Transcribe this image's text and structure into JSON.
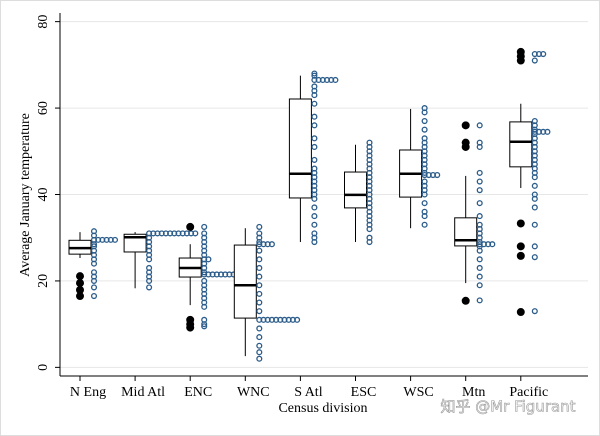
{
  "chart_data": {
    "type": "box",
    "y_label": "Average January temperature",
    "x_label": "Census division",
    "watermark": "知乎 @Mr Figurant",
    "categories": [
      "N Eng",
      "Mid Atl",
      "ENC",
      "WNC",
      "S Atl",
      "ESC",
      "WSC",
      "Mtn",
      "Pacific"
    ],
    "ylim": [
      -2,
      82
    ],
    "yticks": [
      0,
      20,
      40,
      60,
      80
    ],
    "grid": true,
    "box_color": "#000000",
    "point_color": "#2b5c8a",
    "boxes": [
      {
        "whisker_low": 25.3,
        "q1": 26.2,
        "median": 27.6,
        "q3": 29.4,
        "whisker_high": 31.3,
        "outliers": [
          21.1,
          19.5,
          17.9,
          16.5
        ]
      },
      {
        "whisker_low": 18.3,
        "q1": 26.7,
        "median": 30.1,
        "q3": 30.8,
        "whisker_high": 31.3,
        "outliers": []
      },
      {
        "whisker_low": 14.4,
        "q1": 20.9,
        "median": 23.0,
        "q3": 25.3,
        "whisker_high": 28.5,
        "outliers": [
          32.5,
          11.0,
          10.0,
          9.2
        ]
      },
      {
        "whisker_low": 2.6,
        "q1": 11.4,
        "median": 19.0,
        "q3": 28.3,
        "whisker_high": 32.2,
        "outliers": []
      },
      {
        "whisker_low": 29.0,
        "q1": 39.2,
        "median": 44.8,
        "q3": 62.1,
        "whisker_high": 67.5,
        "outliers": []
      },
      {
        "whisker_low": 29.0,
        "q1": 36.9,
        "median": 39.9,
        "q3": 45.2,
        "whisker_high": 51.5,
        "outliers": []
      },
      {
        "whisker_low": 32.2,
        "q1": 39.4,
        "median": 44.8,
        "q3": 50.3,
        "whisker_high": 59.8,
        "outliers": []
      },
      {
        "whisker_low": 19.5,
        "q1": 28.1,
        "median": 29.4,
        "q3": 34.6,
        "whisker_high": 44.3,
        "outliers": [
          56,
          52,
          51,
          15.4
        ]
      },
      {
        "whisker_low": 41.5,
        "q1": 46.4,
        "median": 52.2,
        "q3": 56.8,
        "whisker_high": 61,
        "outliers": [
          73,
          72,
          71,
          33.3,
          28,
          25.8,
          12.8
        ]
      }
    ],
    "points": [
      [
        31.5,
        30.5,
        29.5,
        29.5,
        29.5,
        29.5,
        29.5,
        29.5,
        28.5,
        28,
        27,
        26,
        25,
        24,
        22,
        21,
        20,
        18.5,
        16.5
      ],
      [
        31,
        31,
        31,
        31,
        31,
        31,
        31,
        31,
        31,
        31,
        31,
        31,
        30,
        29,
        28,
        27,
        26,
        25,
        23,
        22,
        21,
        20,
        18.5
      ],
      [
        32.5,
        31,
        30,
        29,
        28,
        27,
        26,
        25,
        25,
        24,
        23,
        22,
        21.5,
        21.5,
        21.5,
        21.5,
        21.5,
        21.5,
        21.5,
        21.5,
        21.5,
        21.5,
        20,
        19,
        18,
        17,
        16,
        15,
        14,
        11,
        10,
        9.5
      ],
      [
        32.5,
        31,
        30,
        29,
        28.5,
        28.5,
        28.5,
        28.5,
        27,
        25,
        23,
        21,
        19,
        17,
        15,
        13,
        11,
        11,
        11,
        11,
        11,
        11,
        11,
        11,
        11,
        11,
        9,
        7,
        5,
        3.5,
        2
      ],
      [
        68,
        67.5,
        66.5,
        66.5,
        66.5,
        66.5,
        66.5,
        66.5,
        65,
        64,
        63,
        61,
        58,
        56,
        53,
        51,
        48,
        46,
        45,
        44,
        43,
        42,
        41,
        40,
        39,
        37,
        35,
        33,
        31,
        30,
        29
      ],
      [
        52,
        51,
        50,
        49,
        48,
        47,
        46,
        45,
        44,
        43,
        42,
        41,
        40,
        39,
        38,
        37,
        36,
        35,
        34,
        33,
        32,
        30,
        29
      ],
      [
        60,
        59,
        57,
        55,
        53,
        52,
        51,
        50,
        49,
        48,
        47,
        46,
        45,
        44.5,
        44.5,
        44.5,
        44.5,
        43,
        42,
        41,
        40,
        38,
        36,
        35,
        33
      ],
      [
        56,
        52,
        51,
        45,
        43,
        41,
        38,
        35,
        33,
        32,
        31,
        30,
        29,
        28.5,
        28.5,
        28.5,
        28.5,
        28,
        27,
        25,
        23,
        21,
        19,
        15.5
      ],
      [
        72.5,
        72.5,
        72.5,
        71,
        57,
        56,
        55,
        54.5,
        54.5,
        54.5,
        54.5,
        54,
        53,
        52,
        51,
        50,
        49,
        48,
        47,
        46,
        45,
        44,
        42,
        40,
        39,
        37,
        33,
        28,
        25.5,
        13
      ]
    ]
  }
}
